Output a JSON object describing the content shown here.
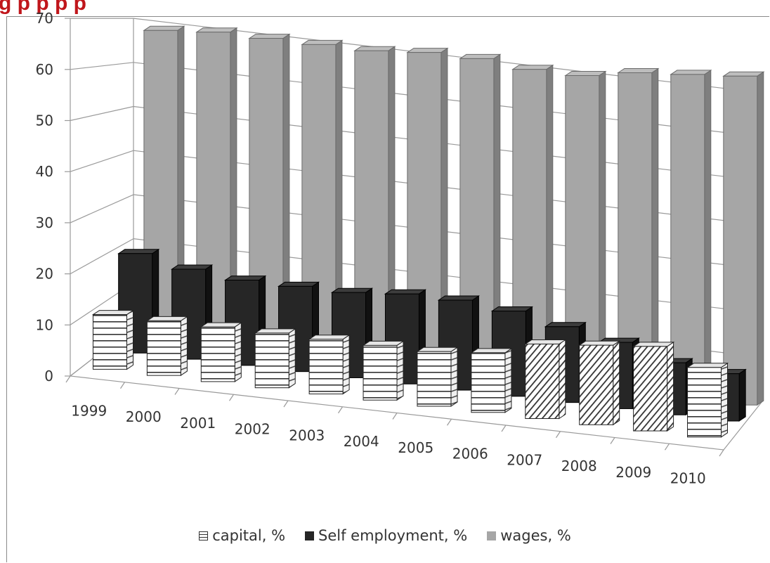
{
  "header": {
    "title": "g                                    p                                                  p  p                    p"
  },
  "chart_data": {
    "type": "bar",
    "subtype": "3d-column",
    "title": "",
    "xlabel": "",
    "ylabel": "",
    "ylim": [
      0,
      70
    ],
    "yticks": [
      0,
      10,
      20,
      30,
      40,
      50,
      60,
      70
    ],
    "grid": true,
    "legend_position": "bottom",
    "categories": [
      "1999",
      "2000",
      "2001",
      "2002",
      "2003",
      "2004",
      "2005",
      "2006",
      "2007",
      "2008",
      "2009",
      "2010"
    ],
    "series": [
      {
        "name": "capital, %",
        "color": "#ffffff",
        "pattern": "horizontal-lines",
        "values": [
          11,
          11,
          11,
          11,
          11,
          11,
          11,
          12,
          15,
          16,
          17,
          14
        ]
      },
      {
        "name": "Self employment, %",
        "color": "#262626",
        "values": [
          21,
          19,
          18,
          18,
          18,
          19,
          19,
          18,
          16,
          14,
          11,
          10
        ]
      },
      {
        "name": "wages, %",
        "color": "#a6a6a6",
        "values": [
          68,
          69,
          69,
          69,
          69,
          70,
          70,
          69,
          69,
          71,
          72,
          73
        ]
      }
    ]
  }
}
